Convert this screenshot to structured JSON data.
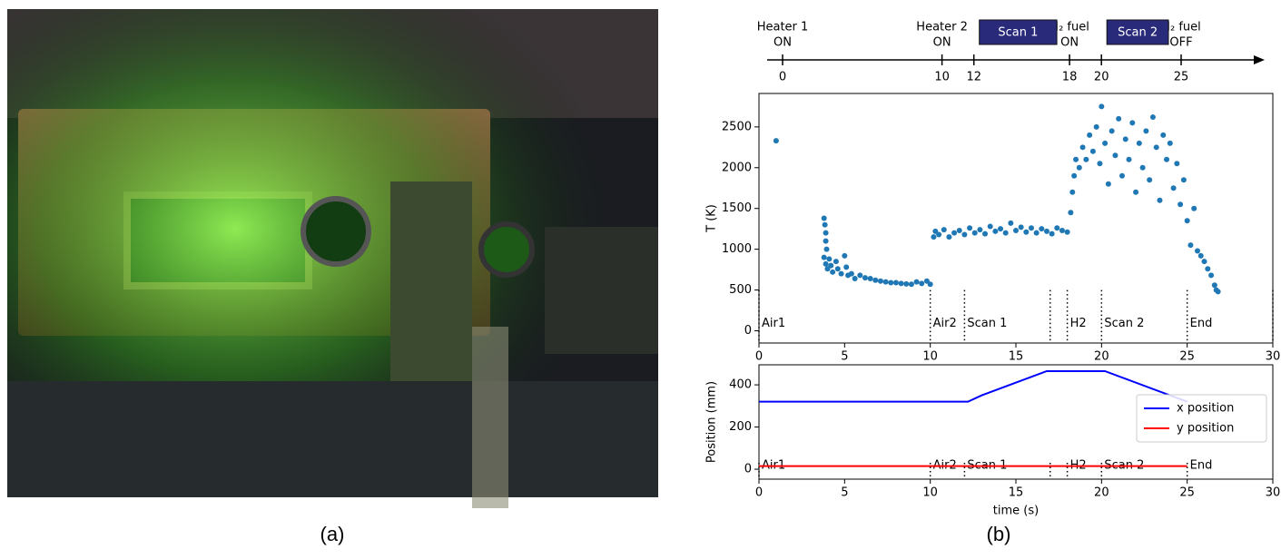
{
  "captions": [
    "(a)",
    "(b)"
  ],
  "timeline": {
    "ticks": [
      0,
      10,
      12,
      18,
      20,
      25
    ],
    "events": [
      {
        "x": 0,
        "label": [
          "Heater 1",
          "ON"
        ]
      },
      {
        "x": 10,
        "label": [
          "Heater 2",
          "ON"
        ]
      },
      {
        "x": 18,
        "label": [
          "H₂ fuel",
          "ON"
        ]
      },
      {
        "x": 25,
        "label": [
          "H₂ fuel",
          "OFF"
        ]
      }
    ],
    "scans": [
      {
        "start": 12,
        "end": 18,
        "label": "Scan 1"
      },
      {
        "start": 20,
        "end": 25,
        "label": "Scan 2"
      }
    ]
  },
  "chart_data": [
    {
      "type": "scatter",
      "ylabel": "T (K)",
      "color": "#1f77b4",
      "xlim": [
        0,
        30
      ],
      "xticks": [
        0,
        5,
        10,
        15,
        20,
        25,
        30
      ],
      "ylim": [
        -150,
        2910
      ],
      "yticks": [
        0,
        500,
        1000,
        1500,
        2000,
        2500
      ],
      "marker_x": [
        0,
        10,
        12,
        17,
        18,
        20,
        25,
        30
      ],
      "marker_labels": [
        "Air1",
        "Air2",
        "Scan 1",
        null,
        "H2",
        "Scan 2",
        "End",
        null
      ],
      "x": [
        1.0,
        3.8,
        3.85,
        3.9,
        3.9,
        3.95,
        3.8,
        3.9,
        4.0,
        4.1,
        4.2,
        4.3,
        4.5,
        4.6,
        4.8,
        5.0,
        5.1,
        5.2,
        5.4,
        5.6,
        5.9,
        6.2,
        6.5,
        6.8,
        7.1,
        7.4,
        7.7,
        8.0,
        8.3,
        8.6,
        8.9,
        9.2,
        9.5,
        9.8,
        10.0,
        10.2,
        10.3,
        10.5,
        10.8,
        11.1,
        11.4,
        11.7,
        12.0,
        12.3,
        12.6,
        12.9,
        13.2,
        13.5,
        13.8,
        14.1,
        14.4,
        14.7,
        15.0,
        15.3,
        15.6,
        15.9,
        16.2,
        16.5,
        16.8,
        17.1,
        17.4,
        17.7,
        18.0,
        18.2,
        18.3,
        18.4,
        18.5,
        18.7,
        18.9,
        19.1,
        19.3,
        19.5,
        19.7,
        19.9,
        20.0,
        20.2,
        20.4,
        20.6,
        20.8,
        21.0,
        21.2,
        21.4,
        21.6,
        21.8,
        22.0,
        22.2,
        22.4,
        22.6,
        22.8,
        23.0,
        23.2,
        23.4,
        23.6,
        23.8,
        24.0,
        24.2,
        24.4,
        24.6,
        24.8,
        25.0,
        25.2,
        25.4,
        25.6,
        25.8,
        26.0,
        26.2,
        26.4,
        26.6,
        26.7,
        26.8
      ],
      "values": [
        2330,
        1380,
        1300,
        1200,
        1100,
        1000,
        900,
        820,
        760,
        880,
        800,
        720,
        850,
        760,
        700,
        920,
        780,
        680,
        700,
        640,
        680,
        650,
        640,
        620,
        610,
        600,
        590,
        590,
        580,
        575,
        570,
        600,
        580,
        610,
        570,
        1150,
        1220,
        1180,
        1240,
        1150,
        1200,
        1230,
        1180,
        1260,
        1200,
        1240,
        1190,
        1280,
        1220,
        1250,
        1200,
        1320,
        1230,
        1270,
        1210,
        1260,
        1200,
        1250,
        1220,
        1190,
        1260,
        1230,
        1210,
        1450,
        1700,
        1900,
        2100,
        2000,
        2250,
        2100,
        2400,
        2200,
        2500,
        2050,
        2750,
        2300,
        1800,
        2450,
        2150,
        2600,
        1900,
        2350,
        2100,
        2550,
        1700,
        2300,
        2000,
        2450,
        1850,
        2620,
        2250,
        1600,
        2400,
        2100,
        2300,
        1750,
        2050,
        1550,
        1850,
        1350,
        1050,
        1500,
        980,
        920,
        850,
        760,
        680,
        560,
        500,
        480
      ]
    },
    {
      "type": "line",
      "xlabel": "time (s)",
      "ylabel": "Position (mm)",
      "xlim": [
        0,
        30
      ],
      "xticks": [
        0,
        5,
        10,
        15,
        20,
        25,
        30
      ],
      "ylim": [
        -47,
        495
      ],
      "yticks": [
        0,
        200,
        400
      ],
      "legend": "center right",
      "marker_x": [
        0,
        10,
        12,
        17,
        18,
        20,
        25
      ],
      "marker_labels": [
        "Air1",
        "Air2",
        "Scan 1",
        null,
        "H2",
        "Scan 2",
        "End"
      ],
      "series": [
        {
          "name": "x position",
          "color": "#0000ff",
          "x": [
            0,
            12.2,
            13,
            16.8,
            20.2,
            25
          ],
          "values": [
            320,
            320,
            350,
            465,
            465,
            320
          ]
        },
        {
          "name": "y position",
          "color": "#ff0000",
          "x": [
            0,
            25
          ],
          "values": [
            15,
            15
          ]
        }
      ]
    }
  ]
}
